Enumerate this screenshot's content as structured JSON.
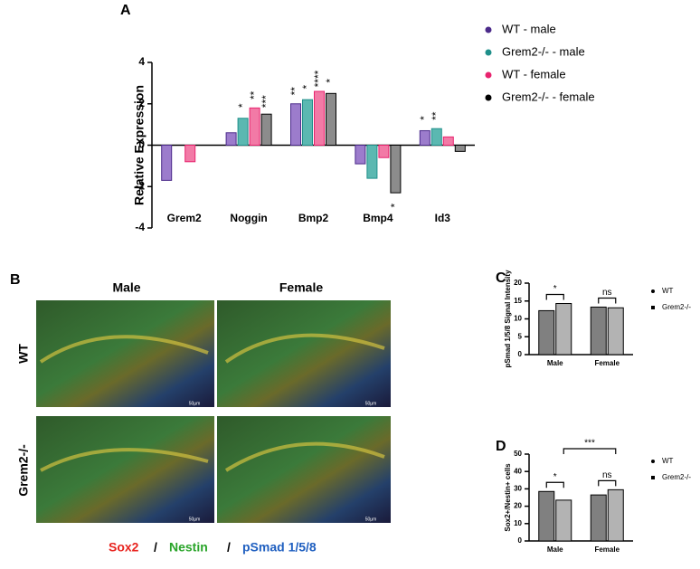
{
  "chart_data": [
    {
      "type": "bar",
      "panel_label": "A",
      "y_label": "Relative Expression",
      "categories": [
        "Grem2",
        "Noggin",
        "Bmp2",
        "Bmp4",
        "Id3"
      ],
      "series": [
        {
          "name": "WT - male",
          "color": "#9c7ccc",
          "marker_color": "#4b2a8a",
          "values": [
            -1.7,
            0.6,
            2.0,
            -0.9,
            0.7
          ],
          "stars": [
            null,
            null,
            "**",
            null,
            "*"
          ]
        },
        {
          "name": "Grem2-/- - male",
          "color": "#5bb8b1",
          "marker_color": "#1f8f8a",
          "values": [
            null,
            1.3,
            2.2,
            -1.6,
            0.8
          ],
          "stars": [
            null,
            "*",
            "*",
            null,
            "**"
          ]
        },
        {
          "name": "WT - female",
          "color": "#f27aa6",
          "marker_color": "#e8236e",
          "values": [
            -0.8,
            1.8,
            2.6,
            -0.6,
            0.4
          ],
          "stars": [
            null,
            "**",
            "****",
            null,
            null
          ]
        },
        {
          "name": "Grem2-/- - female",
          "color": "#8c8c8c",
          "marker_color": "#000000",
          "values": [
            null,
            1.5,
            2.5,
            -2.3,
            -0.3
          ],
          "stars": [
            null,
            "***",
            "*",
            "*",
            null
          ]
        }
      ],
      "ylim": [
        -4,
        4
      ],
      "yticks": [
        -4,
        -2,
        0,
        2,
        4
      ],
      "legend": "right"
    },
    {
      "type": "bar",
      "panel_label": "C",
      "y_label": "pSmad 1/5/8 Signal Intensity",
      "categories": [
        "Male",
        "Female"
      ],
      "series": [
        {
          "name": "WT",
          "color": "#808080",
          "marker_color": "#000000",
          "values": [
            12.3,
            13.3
          ]
        },
        {
          "name": "Grem2-/-",
          "color": "#b3b3b3",
          "marker_color": "#000000",
          "values": [
            14.3,
            13.1
          ]
        }
      ],
      "annotations": [
        "*",
        "ns"
      ],
      "ylim": [
        0,
        20
      ],
      "yticks": [
        0,
        5,
        10,
        15,
        20
      ],
      "legend": "right"
    },
    {
      "type": "bar",
      "panel_label": "D",
      "y_label": "Sox2+/Nestin+ cells",
      "categories": [
        "Male",
        "Female"
      ],
      "series": [
        {
          "name": "WT",
          "color": "#808080",
          "marker_color": "#000000",
          "values": [
            28.5,
            26.5
          ]
        },
        {
          "name": "Grem2-/-",
          "color": "#b3b3b3",
          "marker_color": "#000000",
          "values": [
            23.5,
            29.5
          ]
        }
      ],
      "annotations": [
        "*",
        "ns",
        "***"
      ],
      "ylim": [
        0,
        50
      ],
      "yticks": [
        0,
        10,
        20,
        30,
        40,
        50
      ],
      "legend": "right"
    }
  ],
  "panel_b": {
    "label": "B",
    "columns": [
      "Male",
      "Female"
    ],
    "rows": [
      "WT",
      "Grem2-/-"
    ],
    "scale_bar": "50µm",
    "stains": [
      "Sox2",
      "/",
      "Nestin",
      "/",
      "pSmad 1/5/8"
    ]
  }
}
